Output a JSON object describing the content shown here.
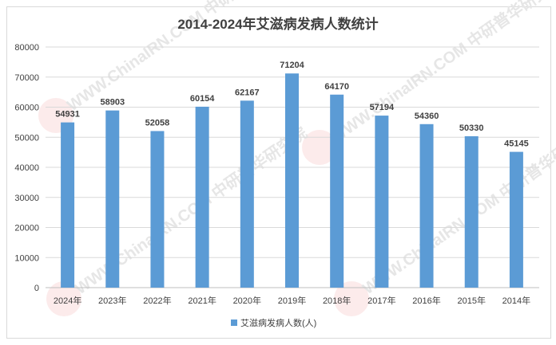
{
  "chart_data": {
    "type": "bar",
    "title": "2014-2024年艾滋病发病人数统计",
    "categories": [
      "2024年",
      "2023年",
      "2022年",
      "2021年",
      "2020年",
      "2019年",
      "2018年",
      "2017年",
      "2016年",
      "2015年",
      "2014年"
    ],
    "series": [
      {
        "name": "艾滋病发病人数(人)",
        "values": [
          54931,
          58903,
          52058,
          60154,
          62167,
          71204,
          64170,
          57194,
          54360,
          50330,
          45145
        ],
        "color": "#5b9bd5"
      }
    ],
    "ylim": [
      0,
      80000
    ],
    "yticks": [
      0,
      10000,
      20000,
      30000,
      40000,
      50000,
      60000,
      70000,
      80000
    ],
    "grid": true,
    "legend": "bottom",
    "data_labels": true
  },
  "watermark": "WWW.ChinaIRN.COM 中研普华研究院"
}
